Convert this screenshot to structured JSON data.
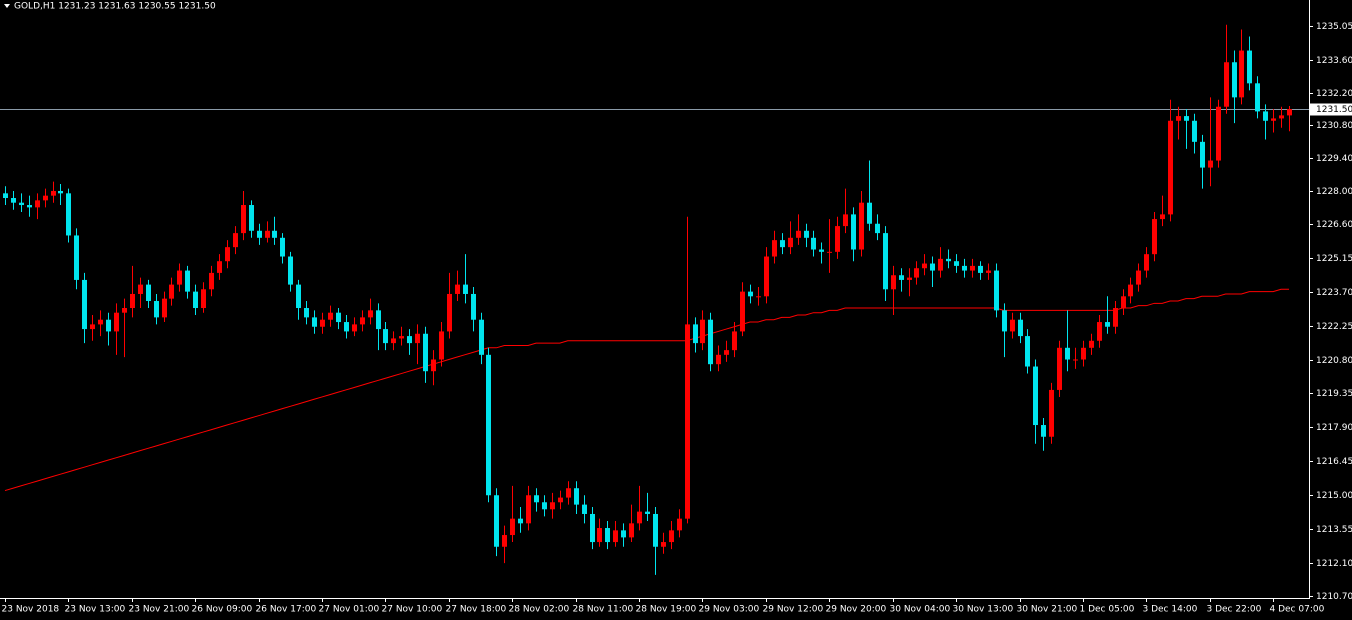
{
  "chart_data": {
    "type": "candlestick",
    "header": "GOLD,H1  1231.23 1231.63 1230.55 1231.50",
    "up_color": "#ff0000",
    "down_color": "#00e5ee",
    "ma_color": "#ff0000",
    "current_color": "#8a9aa8",
    "ylim": [
      1210.61,
      1236.16
    ],
    "yticks": [
      1235.05,
      {
        "value": 1233.6,
        "label": "1233.60"
      },
      {
        "value": 1232.2,
        "label": "1232.20"
      },
      {
        "value": 1230.8,
        "label": "1230.80"
      },
      {
        "value": 1229.4,
        "label": "1229.40"
      },
      {
        "value": 1228,
        "label": "1228.00"
      },
      {
        "value": 1226.6,
        "label": "1226.60"
      },
      1225.15,
      {
        "value": 1223.7,
        "label": "1223.70"
      },
      1222.25,
      {
        "value": 1220.8,
        "label": "1220.80"
      },
      1219.35,
      {
        "value": 1217.9,
        "label": "1217.90"
      },
      1216.45,
      {
        "value": 1215,
        "label": "1215.00"
      },
      1213.55,
      {
        "value": 1212.1,
        "label": "1212.10"
      },
      {
        "value": 1210.7,
        "label": "1210.70"
      }
    ],
    "current_price": {
      "value": 1231.5,
      "label": "1231.50"
    },
    "categories": [
      "23 Nov 2018",
      null,
      null,
      null,
      null,
      null,
      null,
      null,
      "23 Nov 13:00",
      null,
      null,
      null,
      null,
      null,
      null,
      null,
      "23 Nov 21:00",
      null,
      null,
      null,
      null,
      null,
      null,
      null,
      "26 Nov 09:00",
      null,
      null,
      null,
      null,
      null,
      null,
      null,
      "26 Nov 17:00",
      null,
      null,
      null,
      null,
      null,
      null,
      null,
      "27 Nov 01:00",
      null,
      null,
      null,
      null,
      null,
      null,
      null,
      "27 Nov 10:00",
      null,
      null,
      null,
      null,
      null,
      null,
      null,
      "27 Nov 18:00",
      null,
      null,
      null,
      null,
      null,
      null,
      null,
      "28 Nov 02:00",
      null,
      null,
      null,
      null,
      null,
      null,
      null,
      "28 Nov 11:00",
      null,
      null,
      null,
      null,
      null,
      null,
      null,
      "28 Nov 19:00",
      null,
      null,
      null,
      null,
      null,
      null,
      null,
      "29 Nov 03:00",
      null,
      null,
      null,
      null,
      null,
      null,
      null,
      "29 Nov 12:00",
      null,
      null,
      null,
      null,
      null,
      null,
      null,
      "29 Nov 20:00",
      null,
      null,
      null,
      null,
      null,
      null,
      null,
      "30 Nov 04:00",
      null,
      null,
      null,
      null,
      null,
      null,
      null,
      "30 Nov 13:00",
      null,
      null,
      null,
      null,
      null,
      null,
      null,
      "30 Nov 21:00",
      null,
      null,
      null,
      null,
      null,
      null,
      null,
      "1 Dec 05:00",
      null,
      null,
      null,
      null,
      null,
      null,
      null,
      "3 Dec 14:00",
      null,
      null,
      null,
      null,
      null,
      null,
      null,
      "3 Dec 22:00",
      null,
      null,
      null,
      null,
      null,
      null,
      null,
      "4 Dec 07:00",
      null,
      null
    ],
    "candles": [
      [
        1227.9,
        1228.2,
        1227.4,
        1227.7
      ],
      [
        1227.7,
        1228.0,
        1227.2,
        1227.5
      ],
      [
        1227.5,
        1227.9,
        1227.1,
        1227.4
      ],
      [
        1227.4,
        1227.8,
        1226.9,
        1227.3
      ],
      [
        1227.3,
        1227.9,
        1226.8,
        1227.6
      ],
      [
        1227.6,
        1228.1,
        1227.3,
        1227.8
      ],
      [
        1227.8,
        1228.4,
        1227.5,
        1228.0
      ],
      [
        1228.0,
        1228.3,
        1227.4,
        1227.9
      ],
      [
        1227.9,
        1228.1,
        1225.8,
        1226.1
      ],
      [
        1226.1,
        1226.4,
        1223.8,
        1224.2
      ],
      [
        1224.2,
        1224.5,
        1221.5,
        1222.1
      ],
      [
        1222.1,
        1222.7,
        1221.6,
        1222.3
      ],
      [
        1222.3,
        1222.9,
        1221.8,
        1222.5
      ],
      [
        1222.5,
        1222.8,
        1221.4,
        1222.0
      ],
      [
        1222.0,
        1223.2,
        1221.0,
        1222.8
      ],
      [
        1222.8,
        1223.4,
        1220.9,
        1223.0
      ],
      [
        1223.0,
        1224.8,
        1222.6,
        1223.6
      ],
      [
        1223.6,
        1224.3,
        1223.0,
        1224.0
      ],
      [
        1224.0,
        1224.2,
        1223.0,
        1223.3
      ],
      [
        1223.3,
        1223.6,
        1222.3,
        1222.6
      ],
      [
        1222.6,
        1223.7,
        1222.4,
        1223.4
      ],
      [
        1223.4,
        1224.3,
        1223.1,
        1224.0
      ],
      [
        1224.0,
        1224.9,
        1223.7,
        1224.6
      ],
      [
        1224.6,
        1224.8,
        1223.4,
        1223.7
      ],
      [
        1223.7,
        1224.0,
        1222.7,
        1223.0
      ],
      [
        1223.0,
        1224.1,
        1222.8,
        1223.8
      ],
      [
        1223.8,
        1224.8,
        1223.5,
        1224.5
      ],
      [
        1224.5,
        1225.3,
        1224.2,
        1225.0
      ],
      [
        1225.0,
        1225.9,
        1224.7,
        1225.6
      ],
      [
        1225.6,
        1226.5,
        1225.3,
        1226.2
      ],
      [
        1226.2,
        1228.0,
        1225.9,
        1227.4
      ],
      [
        1227.4,
        1227.6,
        1226.0,
        1226.3
      ],
      [
        1226.3,
        1226.6,
        1225.7,
        1226.0
      ],
      [
        1226.0,
        1226.7,
        1225.8,
        1226.3
      ],
      [
        1226.3,
        1226.9,
        1225.7,
        1226.0
      ],
      [
        1226.0,
        1226.2,
        1224.9,
        1225.2
      ],
      [
        1225.2,
        1225.4,
        1223.7,
        1224.0
      ],
      [
        1224.0,
        1224.2,
        1222.5,
        1223.0
      ],
      [
        1223.0,
        1223.3,
        1222.3,
        1222.6
      ],
      [
        1222.6,
        1222.9,
        1221.9,
        1222.2
      ],
      [
        1222.2,
        1222.8,
        1221.9,
        1222.5
      ],
      [
        1222.5,
        1223.1,
        1222.2,
        1222.8
      ],
      [
        1222.8,
        1223.0,
        1222.1,
        1222.4
      ],
      [
        1222.4,
        1222.7,
        1221.7,
        1222.0
      ],
      [
        1222.0,
        1222.6,
        1221.8,
        1222.3
      ],
      [
        1222.3,
        1222.9,
        1222.0,
        1222.6
      ],
      [
        1222.6,
        1223.4,
        1222.3,
        1222.9
      ],
      [
        1222.9,
        1223.2,
        1221.2,
        1222.1
      ],
      [
        1222.1,
        1222.4,
        1221.2,
        1221.5
      ],
      [
        1221.5,
        1222.0,
        1221.2,
        1221.7
      ],
      [
        1221.7,
        1222.2,
        1221.4,
        1221.8
      ],
      [
        1221.8,
        1222.1,
        1221.0,
        1221.5
      ],
      [
        1221.5,
        1222.3,
        1220.6,
        1221.9
      ],
      [
        1221.9,
        1222.2,
        1219.8,
        1220.3
      ],
      [
        1220.3,
        1221.2,
        1219.7,
        1220.8
      ],
      [
        1220.8,
        1222.4,
        1220.5,
        1222.0
      ],
      [
        1222.0,
        1224.5,
        1221.7,
        1223.6
      ],
      [
        1223.6,
        1224.6,
        1223.3,
        1224.0
      ],
      [
        1224.0,
        1225.3,
        1223.2,
        1223.6
      ],
      [
        1223.6,
        1223.9,
        1222.0,
        1222.5
      ],
      [
        1222.5,
        1222.8,
        1220.6,
        1221.0
      ],
      [
        1221.0,
        1221.3,
        1214.7,
        1215.0
      ],
      [
        1215.0,
        1215.3,
        1212.4,
        1212.8
      ],
      [
        1212.8,
        1213.7,
        1212.1,
        1213.3
      ],
      [
        1213.3,
        1215.4,
        1213.0,
        1214.0
      ],
      [
        1214.0,
        1214.5,
        1213.4,
        1213.8
      ],
      [
        1213.8,
        1215.4,
        1213.5,
        1215.0
      ],
      [
        1215.0,
        1215.3,
        1214.3,
        1214.7
      ],
      [
        1214.7,
        1215.0,
        1214.1,
        1214.4
      ],
      [
        1214.4,
        1215.1,
        1214.0,
        1214.7
      ],
      [
        1214.7,
        1215.2,
        1214.4,
        1214.9
      ],
      [
        1214.9,
        1215.6,
        1214.6,
        1215.3
      ],
      [
        1215.3,
        1215.6,
        1214.2,
        1214.6
      ],
      [
        1214.6,
        1215.0,
        1213.8,
        1214.2
      ],
      [
        1214.2,
        1214.5,
        1212.7,
        1213.0
      ],
      [
        1213.0,
        1214.0,
        1212.8,
        1213.6
      ],
      [
        1213.6,
        1213.9,
        1212.7,
        1213.0
      ],
      [
        1213.0,
        1213.9,
        1212.8,
        1213.5
      ],
      [
        1213.5,
        1213.8,
        1212.8,
        1213.2
      ],
      [
        1213.2,
        1214.6,
        1213.0,
        1213.8
      ],
      [
        1213.8,
        1215.4,
        1213.5,
        1214.3
      ],
      [
        1214.3,
        1215.1,
        1213.9,
        1214.2
      ],
      [
        1214.2,
        1214.5,
        1211.6,
        1212.8
      ],
      [
        1212.8,
        1213.4,
        1212.5,
        1213.0
      ],
      [
        1213.0,
        1213.9,
        1212.7,
        1213.5
      ],
      [
        1213.5,
        1214.4,
        1213.2,
        1214.0
      ],
      [
        1214.0,
        1226.9,
        1213.8,
        1222.3
      ],
      [
        1222.3,
        1222.6,
        1221.1,
        1221.5
      ],
      [
        1221.5,
        1222.9,
        1221.2,
        1222.5
      ],
      [
        1222.5,
        1222.8,
        1220.3,
        1220.6
      ],
      [
        1220.6,
        1221.4,
        1220.3,
        1221.0
      ],
      [
        1221.0,
        1221.6,
        1220.7,
        1221.2
      ],
      [
        1221.2,
        1222.4,
        1220.9,
        1222.0
      ],
      [
        1222.0,
        1224.1,
        1221.8,
        1223.7
      ],
      [
        1223.7,
        1224.0,
        1223.2,
        1223.5
      ],
      [
        1223.5,
        1223.9,
        1223.1,
        1223.5
      ],
      [
        1223.5,
        1225.6,
        1223.2,
        1225.2
      ],
      [
        1225.2,
        1226.3,
        1224.9,
        1225.9
      ],
      [
        1225.9,
        1226.2,
        1225.3,
        1225.6
      ],
      [
        1225.6,
        1226.7,
        1225.3,
        1226.0
      ],
      [
        1226.0,
        1227.0,
        1225.7,
        1226.3
      ],
      [
        1226.3,
        1226.6,
        1225.6,
        1226.0
      ],
      [
        1226.0,
        1226.3,
        1225.2,
        1225.5
      ],
      [
        1225.5,
        1225.8,
        1224.9,
        1225.4
      ],
      [
        1225.4,
        1226.8,
        1224.5,
        1225.4
      ],
      [
        1225.4,
        1226.9,
        1225.1,
        1226.5
      ],
      [
        1226.5,
        1228.1,
        1226.2,
        1227.0
      ],
      [
        1227.0,
        1227.3,
        1225.0,
        1225.5
      ],
      [
        1225.5,
        1228.0,
        1225.2,
        1227.5
      ],
      [
        1227.5,
        1229.3,
        1226.3,
        1226.6
      ],
      [
        1226.6,
        1227.0,
        1225.9,
        1226.2
      ],
      [
        1226.2,
        1226.5,
        1223.3,
        1223.8
      ],
      [
        1223.8,
        1224.8,
        1222.7,
        1224.4
      ],
      [
        1224.4,
        1224.7,
        1223.7,
        1224.2
      ],
      [
        1224.2,
        1224.7,
        1223.5,
        1224.3
      ],
      [
        1224.3,
        1225.0,
        1224.0,
        1224.7
      ],
      [
        1224.7,
        1225.3,
        1224.4,
        1224.9
      ],
      [
        1224.9,
        1225.2,
        1223.9,
        1224.6
      ],
      [
        1224.6,
        1225.6,
        1224.3,
        1225.1
      ],
      [
        1225.1,
        1225.5,
        1224.7,
        1225.0
      ],
      [
        1225.0,
        1225.3,
        1224.5,
        1224.8
      ],
      [
        1224.8,
        1225.1,
        1224.3,
        1224.6
      ],
      [
        1224.6,
        1225.1,
        1224.3,
        1224.8
      ],
      [
        1224.8,
        1225.0,
        1224.2,
        1224.5
      ],
      [
        1224.5,
        1224.9,
        1224.2,
        1224.6
      ],
      [
        1224.6,
        1224.9,
        1222.6,
        1222.9
      ],
      [
        1222.9,
        1223.2,
        1220.9,
        1222.0
      ],
      [
        1222.0,
        1222.8,
        1221.7,
        1222.5
      ],
      [
        1222.5,
        1222.8,
        1221.5,
        1221.8
      ],
      [
        1221.8,
        1222.1,
        1220.2,
        1220.5
      ],
      [
        1220.5,
        1220.8,
        1217.2,
        1218.0
      ],
      [
        1218.0,
        1218.3,
        1216.9,
        1217.5
      ],
      [
        1217.5,
        1219.8,
        1217.2,
        1219.5
      ],
      [
        1219.5,
        1221.6,
        1219.2,
        1221.3
      ],
      [
        1221.3,
        1222.9,
        1220.3,
        1220.8
      ],
      [
        1220.8,
        1221.3,
        1220.4,
        1220.8
      ],
      [
        1220.8,
        1221.6,
        1220.5,
        1221.3
      ],
      [
        1221.3,
        1221.9,
        1221.0,
        1221.6
      ],
      [
        1221.6,
        1222.7,
        1221.3,
        1222.4
      ],
      [
        1222.4,
        1223.5,
        1221.9,
        1222.2
      ],
      [
        1222.2,
        1223.3,
        1221.9,
        1223.0
      ],
      [
        1223.0,
        1223.8,
        1222.7,
        1223.5
      ],
      [
        1223.5,
        1224.3,
        1223.2,
        1224.0
      ],
      [
        1224.0,
        1224.9,
        1223.7,
        1224.6
      ],
      [
        1224.6,
        1225.6,
        1224.3,
        1225.3
      ],
      [
        1225.3,
        1227.1,
        1225.0,
        1226.8
      ],
      [
        1226.8,
        1227.8,
        1226.5,
        1227.0
      ],
      [
        1227.0,
        1231.9,
        1226.7,
        1231.0
      ],
      [
        1231.0,
        1231.6,
        1230.2,
        1231.2
      ],
      [
        1231.2,
        1231.5,
        1229.8,
        1231.0
      ],
      [
        1231.0,
        1231.3,
        1229.6,
        1230.1
      ],
      [
        1230.1,
        1230.4,
        1228.1,
        1229.0
      ],
      [
        1229.0,
        1232.0,
        1228.2,
        1229.3
      ],
      [
        1229.3,
        1231.9,
        1229.0,
        1231.6
      ],
      [
        1231.6,
        1235.1,
        1231.3,
        1233.5
      ],
      [
        1233.5,
        1234.0,
        1230.9,
        1232.0
      ],
      [
        1232.0,
        1234.9,
        1231.7,
        1234.0
      ],
      [
        1234.0,
        1234.6,
        1232.3,
        1232.6
      ],
      [
        1232.6,
        1232.9,
        1231.1,
        1231.4
      ],
      [
        1231.4,
        1231.7,
        1230.2,
        1231.0
      ],
      [
        1231.0,
        1231.5,
        1230.5,
        1231.1
      ],
      [
        1231.1,
        1231.6,
        1230.7,
        1231.23
      ],
      [
        1231.23,
        1231.63,
        1230.55,
        1231.5
      ]
    ],
    "ma": [
      1215.2,
      1215.3,
      1215.4,
      1215.5,
      1215.6,
      1215.7,
      1215.8,
      1215.9,
      1216.0,
      1216.1,
      1216.2,
      1216.3,
      1216.4,
      1216.5,
      1216.6,
      1216.7,
      1216.8,
      1216.9,
      1217.0,
      1217.1,
      1217.2,
      1217.3,
      1217.4,
      1217.5,
      1217.6,
      1217.7,
      1217.8,
      1217.9,
      1218.0,
      1218.1,
      1218.2,
      1218.3,
      1218.4,
      1218.5,
      1218.6,
      1218.7,
      1218.8,
      1218.9,
      1219.0,
      1219.1,
      1219.2,
      1219.3,
      1219.4,
      1219.5,
      1219.6,
      1219.7,
      1219.8,
      1219.9,
      1220.0,
      1220.1,
      1220.2,
      1220.3,
      1220.4,
      1220.5,
      1220.6,
      1220.7,
      1220.8,
      1220.9,
      1221.0,
      1221.1,
      1221.2,
      1221.3,
      1221.3,
      1221.4,
      1221.4,
      1221.4,
      1221.4,
      1221.5,
      1221.5,
      1221.5,
      1221.5,
      1221.6,
      1221.6,
      1221.6,
      1221.6,
      1221.6,
      1221.6,
      1221.6,
      1221.6,
      1221.6,
      1221.6,
      1221.6,
      1221.6,
      1221.6,
      1221.6,
      1221.6,
      1221.6,
      1221.7,
      1221.8,
      1221.9,
      1222.0,
      1222.1,
      1222.2,
      1222.3,
      1222.4,
      1222.4,
      1222.5,
      1222.5,
      1222.6,
      1222.6,
      1222.7,
      1222.7,
      1222.8,
      1222.8,
      1222.9,
      1222.9,
      1223.0,
      1223.0,
      1223.0,
      1223.0,
      1223.0,
      1223.0,
      1223.0,
      1223.0,
      1223.0,
      1223.0,
      1223.0,
      1223.0,
      1223.0,
      1223.0,
      1223.0,
      1223.0,
      1223.0,
      1223.0,
      1223.0,
      1223.0,
      1222.9,
      1222.9,
      1222.9,
      1222.9,
      1222.9,
      1222.9,
      1222.9,
      1222.9,
      1222.9,
      1222.9,
      1222.9,
      1222.9,
      1222.9,
      1222.9,
      1222.9,
      1223.0,
      1223.0,
      1223.1,
      1223.1,
      1223.2,
      1223.2,
      1223.3,
      1223.3,
      1223.4,
      1223.4,
      1223.5,
      1223.5,
      1223.5,
      1223.6,
      1223.6,
      1223.6,
      1223.7,
      1223.7,
      1223.7,
      1223.7,
      1223.8,
      1223.8
    ]
  }
}
